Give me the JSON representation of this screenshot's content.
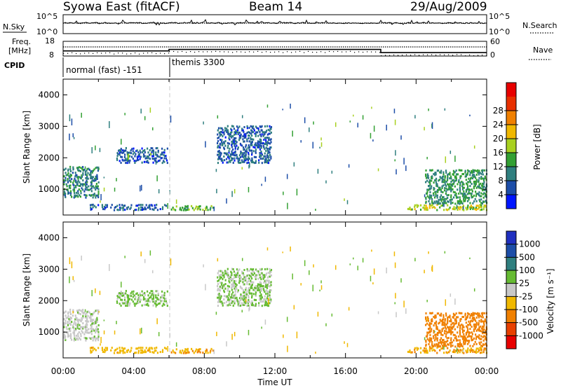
{
  "header": {
    "title": "Syowa East (fitACF)",
    "beam": "Beam 14",
    "date": "29/Aug/2009"
  },
  "summary": {
    "nsky_label": "N.Sky",
    "nsky_ticks": [
      "10^5",
      "10^0"
    ],
    "nsearch_label": "N.Search",
    "nsearch_ticks": [
      "10^5",
      "10^0"
    ],
    "freq_label_line1": "Freq.",
    "freq_label_line2": "[MHz]",
    "freq_ticks": [
      "18",
      "8"
    ],
    "nave_label": "Nave",
    "nave_ticks": [
      "60",
      "0"
    ],
    "cpid_label": "CPID",
    "cpid_modes": [
      "normal (fast) -151",
      "themis 3300"
    ]
  },
  "axes": {
    "xlabel": "Time UT",
    "x_ticks": [
      "00:00",
      "04:00",
      "08:00",
      "12:00",
      "16:00",
      "20:00",
      "00:00"
    ],
    "ylabel": "Slant Range [km]",
    "y_ticks": [
      "1000",
      "2000",
      "3000",
      "4000"
    ]
  },
  "colorbars": {
    "power": {
      "label": "Power [dB]",
      "ticks": [
        "4",
        "8",
        "12",
        "16",
        "20",
        "24",
        "28"
      ],
      "colors": [
        "#0015ff",
        "#1d4ea8",
        "#2f7f7f",
        "#33a033",
        "#a8d020",
        "#f0b800",
        "#f08000",
        "#e83000",
        "#e80000"
      ]
    },
    "velocity": {
      "label": "Velocity [m s⁻¹]",
      "ticks": [
        "1000",
        "500",
        "100",
        "25",
        "-25",
        "-100",
        "-500",
        "-1000"
      ],
      "colors": [
        "#2030c0",
        "#1d4ea8",
        "#2f7f7f",
        "#66bb33",
        "#c8c8c8",
        "#f0b800",
        "#f08000",
        "#e84000",
        "#e80000"
      ]
    }
  },
  "chart_data": {
    "type": "heatmap",
    "title": "Syowa East (fitACF)",
    "xlabel": "Time UT",
    "ylabel": "Slant Range [km]",
    "xlim_hours": [
      0,
      24
    ],
    "ylim_km": [
      180,
      4500
    ],
    "mode_change_hour": 6.0,
    "echo_regions": [
      {
        "t0": 0.0,
        "t1": 2.0,
        "r0": 700,
        "r1": 1700,
        "power_db": 10,
        "velocity": 5
      },
      {
        "t0": 1.5,
        "t1": 6.0,
        "r0": 300,
        "r1": 500,
        "power_db": 7,
        "velocity": -70
      },
      {
        "t0": 3.0,
        "t1": 5.9,
        "r0": 1800,
        "r1": 2300,
        "power_db": 6,
        "velocity": 40
      },
      {
        "t0": 6.0,
        "t1": 8.5,
        "r0": 300,
        "r1": 450,
        "power_db": 15,
        "velocity": -90
      },
      {
        "t0": 8.7,
        "t1": 11.8,
        "r0": 1800,
        "r1": 3000,
        "power_db": 7,
        "velocity": 30
      },
      {
        "t0": 19.5,
        "t1": 24.0,
        "r0": 300,
        "r1": 500,
        "power_db": 18,
        "velocity": -90
      },
      {
        "t0": 20.5,
        "t1": 24.0,
        "r0": 500,
        "r1": 1600,
        "power_db": 12,
        "velocity": -250
      }
    ],
    "search_noise_level": "~10^4",
    "frequency_mhz_approx": 11.5,
    "nave_segments": [
      {
        "t0": 0.0,
        "t1": 6.0,
        "nave": 21
      },
      {
        "t0": 6.0,
        "t1": 18.0,
        "nave": 27
      },
      {
        "t0": 18.0,
        "t1": 24.0,
        "nave": 14
      }
    ]
  }
}
